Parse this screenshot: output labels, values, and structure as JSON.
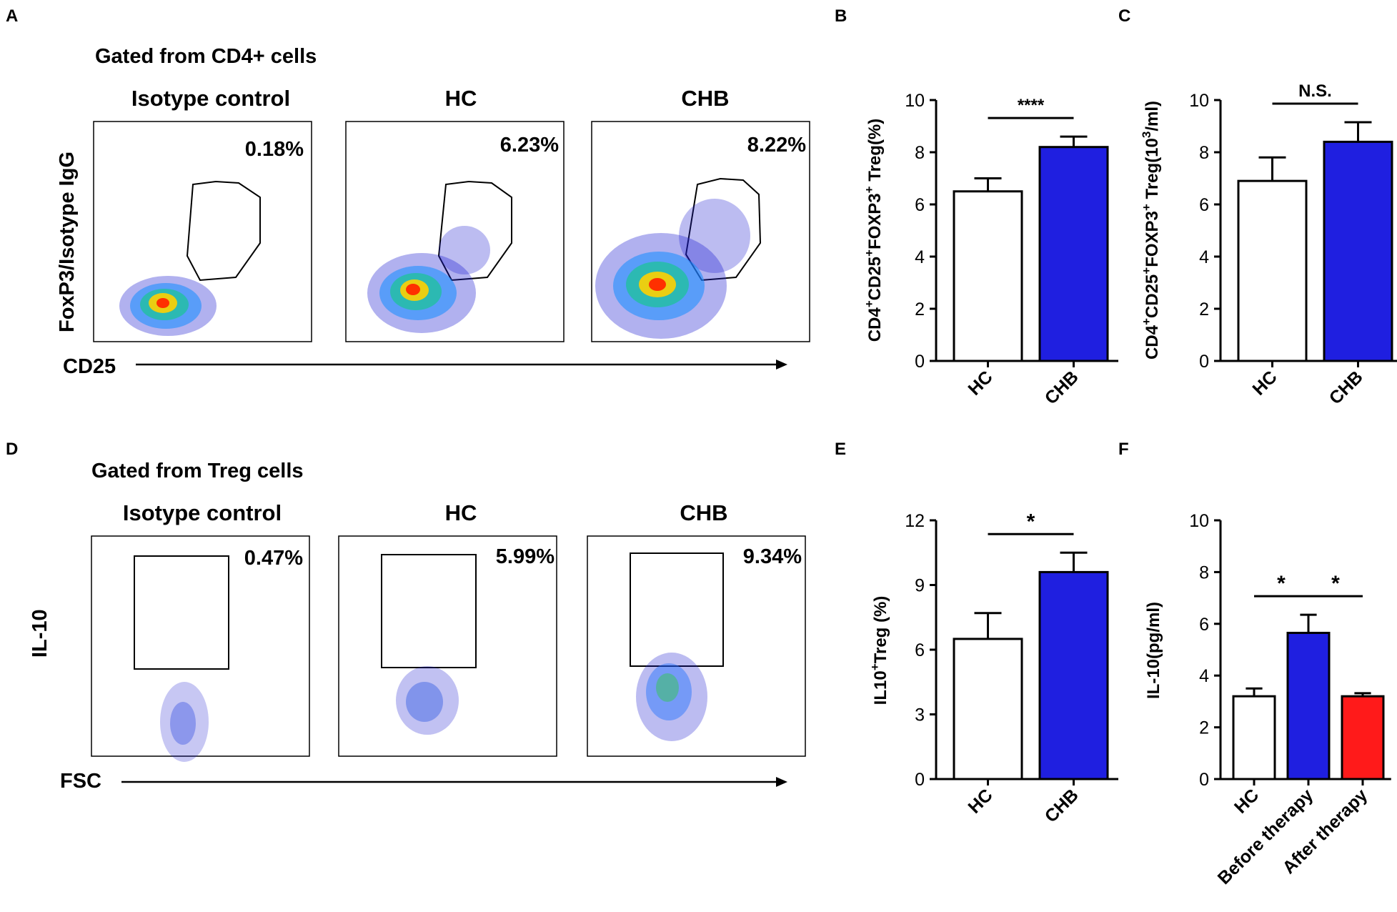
{
  "panels": {
    "A": {
      "letter": "A",
      "gate_title": "Gated from CD4+ cells",
      "x_axis": "CD25",
      "y_axis": "FoxP3/Isotype IgG",
      "plots": [
        {
          "title": "Isotype control",
          "percent": "0.18%"
        },
        {
          "title": "HC",
          "percent": "6.23%"
        },
        {
          "title": "CHB",
          "percent": "8.22%"
        }
      ]
    },
    "D": {
      "letter": "D",
      "gate_title": "Gated from Treg cells",
      "x_axis": "FSC",
      "y_axis": "IL-10",
      "plots": [
        {
          "title": "Isotype control",
          "percent": "0.47%"
        },
        {
          "title": "HC",
          "percent": "5.99%"
        },
        {
          "title": "CHB",
          "percent": "9.34%"
        }
      ]
    }
  },
  "colors": {
    "hc_bar": "#ffffff",
    "chb_bar": "#1f1fe0",
    "after_therapy_bar": "#ff1a1a",
    "axis": "#000000"
  },
  "chart_data": [
    {
      "panel": "B",
      "type": "bar",
      "categories": [
        "HC",
        "CHB"
      ],
      "values": [
        6.5,
        8.2
      ],
      "errors": [
        0.5,
        0.4
      ],
      "colors": [
        "#ffffff",
        "#1f1fe0"
      ],
      "ylabel": "CD4+CD25+FOXP3+ Treg(%)",
      "ylim": [
        0,
        10
      ],
      "yticks": [
        "0",
        "2",
        "4",
        "6",
        "8",
        "10"
      ],
      "significance": [
        {
          "from": 0,
          "to": 1,
          "label": "****"
        }
      ]
    },
    {
      "panel": "C",
      "type": "bar",
      "categories": [
        "HC",
        "CHB"
      ],
      "values": [
        6.9,
        8.4
      ],
      "errors": [
        0.9,
        0.75
      ],
      "colors": [
        "#ffffff",
        "#1f1fe0"
      ],
      "ylabel": "CD4+CD25+FOXP3+ Treg(103/ml)",
      "ylim": [
        0,
        10
      ],
      "yticks": [
        "0",
        "2",
        "4",
        "6",
        "8",
        "10"
      ],
      "significance": [
        {
          "from": 0,
          "to": 1,
          "label": "N.S."
        }
      ]
    },
    {
      "panel": "E",
      "type": "bar",
      "categories": [
        "HC",
        "CHB"
      ],
      "values": [
        6.5,
        9.6
      ],
      "errors": [
        1.2,
        0.9
      ],
      "colors": [
        "#ffffff",
        "#1f1fe0"
      ],
      "ylabel": "IL10+Treg (%)",
      "ylim": [
        0,
        12
      ],
      "yticks": [
        "0",
        "3",
        "6",
        "9",
        "12"
      ],
      "significance": [
        {
          "from": 0,
          "to": 1,
          "label": "*"
        }
      ]
    },
    {
      "panel": "F",
      "type": "bar",
      "categories": [
        "HC",
        "Before therapy",
        "After therapy"
      ],
      "values": [
        3.2,
        5.65,
        3.2
      ],
      "errors": [
        0.3,
        0.7,
        0.12
      ],
      "colors": [
        "#ffffff",
        "#1f1fe0",
        "#ff1a1a"
      ],
      "ylabel": "IL-10(pg/ml)",
      "ylim": [
        0,
        10
      ],
      "yticks": [
        "0",
        "2",
        "4",
        "6",
        "8",
        "10"
      ],
      "significance": [
        {
          "from": 0,
          "to": 1,
          "label": "*"
        },
        {
          "from": 1,
          "to": 2,
          "label": "*"
        }
      ]
    }
  ]
}
